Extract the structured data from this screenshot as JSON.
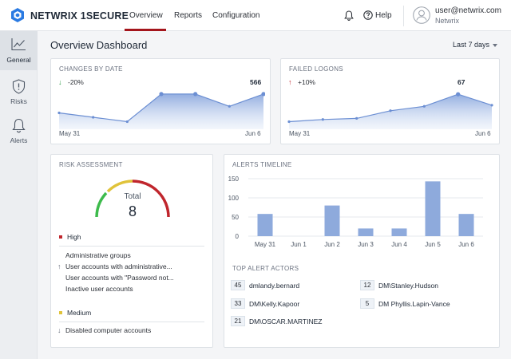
{
  "app": {
    "brand": "NETWRIX 1SECURE"
  },
  "nav": {
    "tabs": [
      {
        "label": "Overview",
        "active": true
      },
      {
        "label": "Reports",
        "active": false
      },
      {
        "label": "Configuration",
        "active": false
      }
    ],
    "help_label": "Help",
    "user_email": "user@netwrix.com",
    "user_org": "Netwrix",
    "accent_color": "#a4151c"
  },
  "sidebar": {
    "items": [
      {
        "label": "General",
        "icon": "chart-line-icon",
        "active": true
      },
      {
        "label": "Risks",
        "icon": "shield-alert-icon",
        "active": false
      },
      {
        "label": "Alerts",
        "icon": "bell-icon",
        "active": false
      }
    ]
  },
  "page": {
    "title": "Overview Dashboard",
    "range_select": "Last 7 days"
  },
  "changes": {
    "title": "CHANGES BY DATE",
    "trend": "-20%",
    "trend_direction": "down",
    "peak_label": "566",
    "start_date": "May 31",
    "end_date": "Jun 6"
  },
  "failed": {
    "title": "FAILED LOGONS",
    "trend": "+10%",
    "trend_direction": "up",
    "peak_label": "67",
    "start_date": "May 31",
    "end_date": "Jun 6"
  },
  "risk": {
    "title": "RISK ASSESSMENT",
    "total_label": "Total",
    "total_value": "8",
    "high_label": "High",
    "high_color": "#c0262d",
    "high_items": [
      {
        "label": "Administrative groups",
        "arrow": ""
      },
      {
        "label": "User accounts with administrative...",
        "arrow": "up"
      },
      {
        "label": "User accounts with \"Password not...",
        "arrow": ""
      },
      {
        "label": "Inactive user accounts",
        "arrow": ""
      }
    ],
    "medium_label": "Medium",
    "medium_color": "#e0c33a",
    "medium_items": [
      {
        "label": "Disabled computer accounts",
        "arrow": "down"
      }
    ]
  },
  "alerts": {
    "title": "ALERTS TIMELINE",
    "actors_title": "TOP ALERT ACTORS",
    "actors": [
      {
        "count": "45",
        "name": "dmlandy.bernard"
      },
      {
        "count": "12",
        "name": "DM\\Stanley.Hudson"
      },
      {
        "count": "33",
        "name": "DM\\Kelly.Kapoor"
      },
      {
        "count": "5",
        "name": "DM Phyllis.Lapin-Vance"
      },
      {
        "count": "21",
        "name": "DM\\OSCAR.MARTINEZ"
      }
    ]
  },
  "chart_data": [
    {
      "type": "area",
      "title": "CHANGES BY DATE",
      "x": [
        "May 31",
        "Jun 1",
        "Jun 2",
        "Jun 3",
        "Jun 4",
        "Jun 5",
        "Jun 6"
      ],
      "values": [
        480,
        460,
        440,
        566,
        566,
        510,
        566
      ],
      "peak": 566
    },
    {
      "type": "area",
      "title": "FAILED LOGONS",
      "x": [
        "May 31",
        "Jun 1",
        "Jun 2",
        "Jun 3",
        "Jun 4",
        "Jun 5",
        "Jun 6"
      ],
      "values": [
        42,
        44,
        45,
        52,
        56,
        67,
        57
      ],
      "peak": 67
    },
    {
      "type": "bar",
      "title": "ALERTS TIMELINE",
      "categories": [
        "May 31",
        "Jun 1",
        "Jun 2",
        "Jun 3",
        "Jun 4",
        "Jun 5",
        "Jun 6"
      ],
      "values": [
        58,
        0,
        80,
        20,
        20,
        143,
        58
      ],
      "ylim": [
        0,
        150
      ],
      "yticks": [
        0,
        50,
        100,
        150
      ],
      "color": "#8eaadc",
      "grid": true
    }
  ]
}
